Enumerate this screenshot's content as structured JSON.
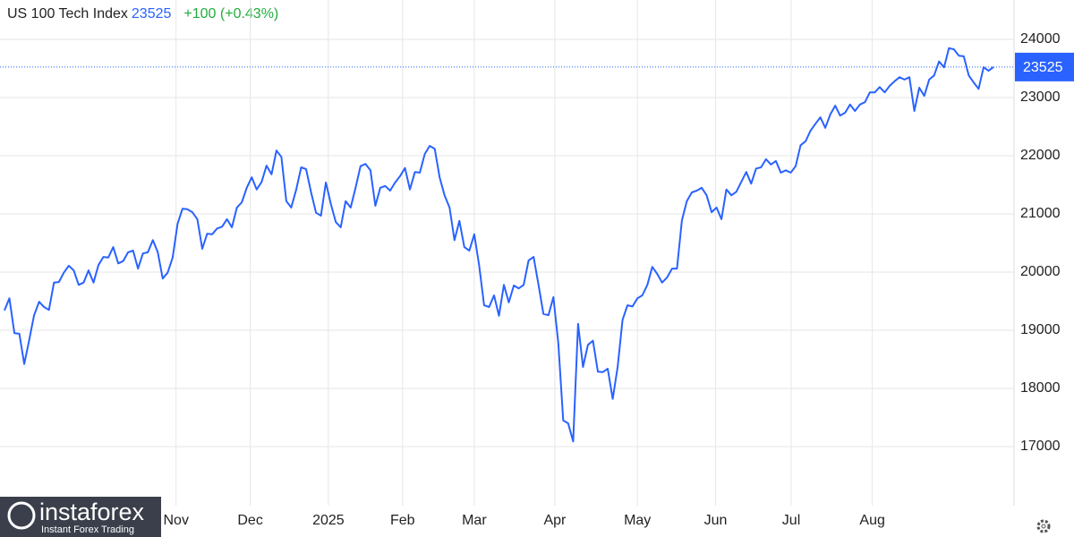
{
  "chart_data": {
    "type": "line",
    "title": "US 100 Tech Index",
    "last_value": 23525,
    "change_label": "+100 (+0.43%)",
    "series": [
      {
        "name": "US 100 Tech Index",
        "color": "#2962ff",
        "values": [
          19340,
          19550,
          18950,
          18940,
          18420,
          18830,
          19260,
          19490,
          19400,
          19350,
          19820,
          19830,
          19990,
          20110,
          20030,
          19780,
          19820,
          20030,
          19820,
          20120,
          20260,
          20250,
          20430,
          20150,
          20190,
          20340,
          20370,
          20060,
          20320,
          20340,
          20550,
          20340,
          19890,
          19990,
          20250,
          20830,
          21090,
          21080,
          21030,
          20910,
          20400,
          20660,
          20650,
          20750,
          20780,
          20910,
          20770,
          21110,
          21200,
          21450,
          21630,
          21420,
          21550,
          21830,
          21680,
          22090,
          21980,
          21220,
          21110,
          21420,
          21800,
          21770,
          21370,
          21020,
          20970,
          21540,
          21170,
          20860,
          20770,
          21220,
          21110,
          21450,
          21820,
          21860,
          21750,
          21140,
          21450,
          21480,
          21400,
          21540,
          21650,
          21790,
          21420,
          21720,
          21710,
          22030,
          22170,
          22120,
          21630,
          21320,
          21110,
          20550,
          20880,
          20430,
          20370,
          20650,
          20110,
          19430,
          19400,
          19600,
          19250,
          19780,
          19480,
          19770,
          19720,
          19780,
          20200,
          20260,
          19780,
          19280,
          19260,
          19570,
          18780,
          17450,
          17400,
          17090,
          19110,
          18370,
          18750,
          18820,
          18290,
          18280,
          18340,
          17820,
          18370,
          19180,
          19430,
          19410,
          19550,
          19600,
          19780,
          20090,
          19970,
          19820,
          19910,
          20060,
          20060,
          20890,
          21220,
          21370,
          21400,
          21450,
          21320,
          21030,
          21110,
          20910,
          21420,
          21320,
          21380,
          21550,
          21720,
          21520,
          21780,
          21800,
          21940,
          21850,
          21910,
          21710,
          21750,
          21710,
          21820,
          22180,
          22250,
          22430,
          22550,
          22660,
          22480,
          22710,
          22860,
          22690,
          22740,
          22880,
          22770,
          22880,
          22920,
          23090,
          23090,
          23180,
          23090,
          23200,
          23280,
          23350,
          23310,
          23350,
          22770,
          23170,
          23030,
          23310,
          23380,
          23620,
          23520,
          23850,
          23830,
          23720,
          23710,
          23380,
          23260,
          23150,
          23520,
          23460,
          23525
        ]
      }
    ],
    "ylim": [
      15985,
      24677
    ],
    "yticks": [
      17000,
      18000,
      19000,
      20000,
      21000,
      22000,
      23000,
      24000
    ],
    "xticks": [
      {
        "value": 34.7,
        "label": "Nov"
      },
      {
        "value": 49.7,
        "label": "Dec"
      },
      {
        "value": 65.5,
        "label": "2025"
      },
      {
        "value": 80.5,
        "label": "Feb"
      },
      {
        "value": 95,
        "label": "Mar"
      },
      {
        "value": 111.3,
        "label": "Apr"
      },
      {
        "value": 128,
        "label": "May"
      },
      {
        "value": 143.8,
        "label": "Jun"
      },
      {
        "value": 159.1,
        "label": "Jul"
      },
      {
        "value": 175.5,
        "label": "Aug"
      }
    ],
    "grid": true
  },
  "watermark": {
    "brand": "instaforex",
    "tagline": "Instant Forex Trading"
  }
}
